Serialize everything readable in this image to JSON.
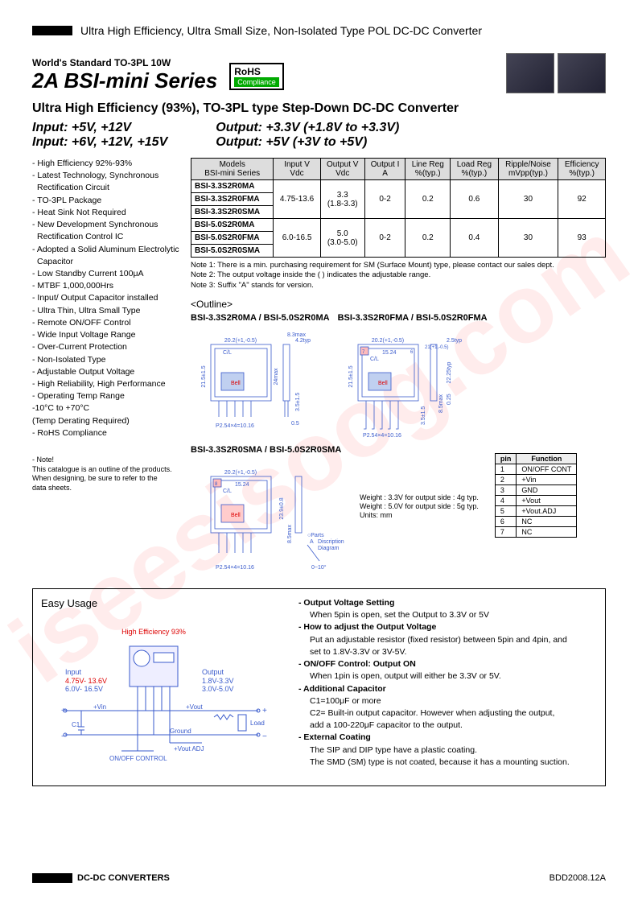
{
  "top_title": "Ultra High Efficiency, Ultra Small Size, Non-Isolated Type POL DC-DC Converter",
  "worlds_standard": "World's Standard   TO-3PL  10W",
  "series_title": "2A  BSI-mini  Series",
  "rohs": {
    "top": "RoHS",
    "bottom": "Compliance"
  },
  "subtitle": "Ultra High Efficiency (93%), TO-3PL type Step-Down DC-DC Converter",
  "io": {
    "in1": "Input: +5V, +12V",
    "in2": "Input: +6V, +12V, +15V",
    "out1": "Output: +3.3V (+1.8V to +3.3V)",
    "out2": "Output: +5V (+3V to +5V)"
  },
  "features": [
    "- High Efficiency 92%-93%",
    "- Latest Technology, Synchronous Rectification Circuit",
    "- TO-3PL Package",
    "- Heat Sink Not Required",
    "- New Development Synchronous Rectification Control IC",
    "- Adopted a Solid Aluminum Electrolytic Capacitor",
    "- Low Standby Current 100μA",
    "- MTBF 1,000,000Hrs",
    "- Input/ Output Capacitor installed",
    "- Ultra Thin, Ultra Small Type",
    "- Remote ON/OFF Control",
    "- Wide Input Voltage Range",
    "- Over-Current Protection",
    "- Non-Isolated Type",
    "- Adjustable Output Voltage",
    "- High Reliability, High Performance",
    "- Operating Temp Range",
    "  -10°C to +70°C",
    "  (Temp Derating Required)",
    "- RoHS Compliance"
  ],
  "spec_table": {
    "headers": [
      "Models\nBSI-mini Series",
      "Input V\nVdc",
      "Output V\nVdc",
      "Output I\nA",
      "Line Reg\n%(typ.)",
      "Load Reg\n%(typ.)",
      "Ripple/Noise\nmVpp(typ.)",
      "Efficiency\n%(typ.)"
    ],
    "group1": {
      "models": [
        "BSI-3.3S2R0MA",
        "BSI-3.3S2R0FMA",
        "BSI-3.3S2R0SMA"
      ],
      "cells": [
        "4.75-13.6",
        "3.3\n(1.8-3.3)",
        "0-2",
        "0.2",
        "0.6",
        "30",
        "92"
      ]
    },
    "group2": {
      "models": [
        "BSI-5.0S2R0MA",
        "BSI-5.0S2R0FMA",
        "BSI-5.0S2R0SMA"
      ],
      "cells": [
        "6.0-16.5",
        "5.0\n(3.0-5.0)",
        "0-2",
        "0.2",
        "0.4",
        "30",
        "93"
      ]
    }
  },
  "table_notes": [
    "Note 1: There is a min. purchasing requirement for SM (Surface Mount) type, please contact our sales dept.",
    "Note 2: The output voltage inside the ( ) indicates the adjustable range.",
    "Note 3: Suffix \"A\" stands for version."
  ],
  "outline_heading": "<Outline>",
  "outline_labels": {
    "a": "BSI-3.3S2R0MA / BSI-5.0S2R0MA",
    "b": "BSI-3.3S2R0FMA / BSI-5.0S2R0FMA",
    "c": "BSI-3.3S2R0SMA / BSI-5.0S2R0SMA"
  },
  "outline_dims": {
    "w": "20.2(+1,-0.5)",
    "h": "21.5±1.5",
    "h2": "24max",
    "h3": "22.25typ",
    "h4": "23.9±0.8",
    "top": "8.3max",
    "top2": "4.2typ",
    "top3": "2.5typ",
    "cl": "15.24",
    "pin": "P2.54×4=10.16",
    "lead": "3.5±1.5",
    "lead2": "8.5max",
    "thick": "0.5",
    "thick2": "0.25",
    "cl_label": "C/L",
    "brand": "Bell",
    "pin6": "6",
    "pin7": "7",
    "pin8": "8",
    "discr": "Discription",
    "diag": "Diagram",
    "parts": "○Parts",
    "angle": "0~10°"
  },
  "pin_table": {
    "header": [
      "pin",
      "Function"
    ],
    "rows": [
      [
        "1",
        "ON/OFF CONT"
      ],
      [
        "2",
        "+Vin"
      ],
      [
        "3",
        "GND"
      ],
      [
        "4",
        "+Vout"
      ],
      [
        "5",
        "+Vout.ADJ"
      ],
      [
        "6",
        "NC"
      ],
      [
        "7",
        "NC"
      ]
    ]
  },
  "weight_note": {
    "l1": "Weight : 3.3V for output side : 4g typ.",
    "l2": "Weight : 5.0V for output side : 5g typ.",
    "l3": "Units: mm"
  },
  "catalog_note": {
    "l0": "- Note!",
    "l1": "This catalogue is an outline of the products.",
    "l2": "When designing, be sure to refer to the",
    "l3": "data sheets."
  },
  "easy": {
    "title": "Easy Usage",
    "circuit": {
      "high_eff": "High\nEfficiency\n93%",
      "input": "Input",
      "in_v1": "4.75V- 13.6V",
      "in_v2": "6.0V- 16.5V",
      "output": "Output",
      "out_v1": "1.8V-3.3V",
      "out_v2": "3.0V-5.0V",
      "vin": "+Vin",
      "vout": "+Vout",
      "gnd": "Ground",
      "adj": "+Vout ADJ",
      "onoff": "ON/OFF CONTROL",
      "c1": "C1",
      "load": "Load"
    },
    "sections": [
      {
        "hd": "- Output Voltage Setting",
        "body": [
          "When 5pin is open, set the Output to 3.3V or 5V"
        ]
      },
      {
        "hd": "- How to adjust the Output Voltage",
        "body": [
          "Put an adjustable resistor (fixed resistor) between 5pin and 4pin, and",
          "set to 1.8V-3.3V or 3V-5V."
        ]
      },
      {
        "hd": "- ON/OFF Control: Output ON",
        "body": [
          "When 1pin is open, output will either be 3.3V or 5V."
        ]
      },
      {
        "hd": "- Additional Capacitor",
        "body": [
          "C1=100μF or more",
          "C2= Built-in output capacitor. However when adjusting the output,",
          "       add a 100-220μF capacitor to the output."
        ]
      },
      {
        "hd": "- External Coating",
        "body": [
          "The SIP and DIP type have a plastic coating.",
          "The SMD (SM) type is not coated, because it has a mounting suction."
        ]
      }
    ]
  },
  "footer": {
    "left": "DC-DC CONVERTERS",
    "right": "BDD2008.12A"
  },
  "watermark": "iseesisoog.com",
  "colors": {
    "blue": "#3a5bcc",
    "red": "#d00",
    "green": "#0a0"
  }
}
